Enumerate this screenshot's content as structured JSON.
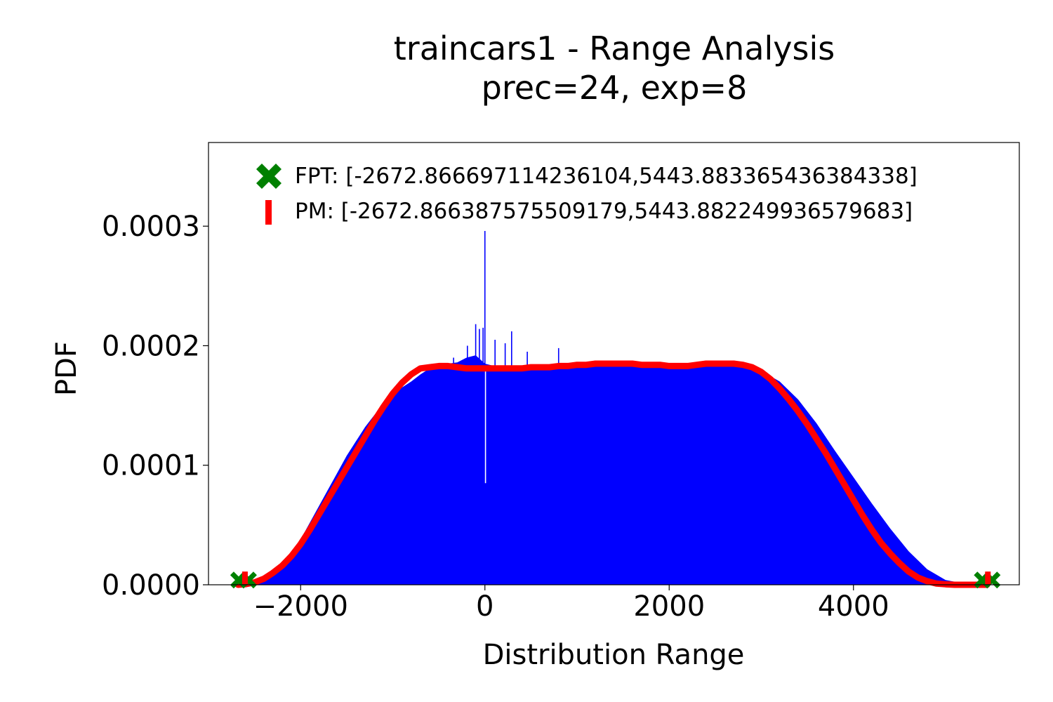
{
  "chart_data": {
    "type": "bar",
    "title": "traincars1 - Range Analysis",
    "subtitle": "prec=24, exp=8",
    "xlabel": "Distribution Range",
    "ylabel": "PDF",
    "xlim": [
      -3000,
      5800
    ],
    "ylim": [
      0,
      0.00037
    ],
    "xticks": [
      -2000,
      0,
      2000,
      4000
    ],
    "xtick_labels": [
      "−2000",
      "0",
      "2000",
      "4000"
    ],
    "yticks": [
      0,
      0.0001,
      0.0002,
      0.0003
    ],
    "ytick_labels": [
      "0.0000",
      "0.0001",
      "0.0002",
      "0.0003"
    ],
    "grid": false,
    "legend_position": "top-right",
    "histogram_color": "#0000ff",
    "histogram": {
      "x": [
        -2650,
        -2500,
        -2400,
        -2300,
        -2200,
        -2100,
        -2000,
        -1900,
        -1800,
        -1700,
        -1600,
        -1500,
        -1400,
        -1300,
        -1200,
        -1100,
        -1000,
        -900,
        -800,
        -700,
        -600,
        -500,
        -400,
        -300,
        -200,
        -100,
        0,
        100,
        200,
        300,
        400,
        500,
        600,
        700,
        800,
        900,
        1000,
        1200,
        1400,
        1600,
        1800,
        2000,
        2200,
        2400,
        2600,
        2800,
        3000,
        3200,
        3400,
        3600,
        3800,
        4000,
        4200,
        4400,
        4600,
        4800,
        5000,
        5200,
        5350,
        5444
      ],
      "values": [
        0,
        1e-06,
        4e-06,
        9e-06,
        1.6e-05,
        2.6e-05,
        3.8e-05,
        5.2e-05,
        6.6e-05,
        8e-05,
        9.4e-05,
        0.000108,
        0.00012,
        0.000132,
        0.000142,
        0.00015,
        0.000158,
        0.000165,
        0.00017,
        0.000176,
        0.000181,
        0.000184,
        0.000185,
        0.000186,
        0.00019,
        0.000192,
        0.000185,
        0.000183,
        0.000182,
        0.000182,
        0.000182,
        0.000182,
        0.000182,
        0.000183,
        0.000184,
        0.000184,
        0.000184,
        0.000186,
        0.000187,
        0.000186,
        0.000185,
        0.000184,
        0.000183,
        0.000185,
        0.000185,
        0.000182,
        0.000179,
        0.00017,
        0.000155,
        0.000135,
        0.000112,
        9e-05,
        6.8e-05,
        4.7e-05,
        2.8e-05,
        1.3e-05,
        4e-06,
        1e-06,
        0,
        0
      ]
    },
    "spikes": [
      {
        "x": -340,
        "value": 0.00019
      },
      {
        "x": -190,
        "value": 0.0002
      },
      {
        "x": -100,
        "value": 0.000218
      },
      {
        "x": -60,
        "value": 0.000214
      },
      {
        "x": -20,
        "value": 0.000215
      },
      {
        "x": 0,
        "value": 0.000296
      },
      {
        "x": 110,
        "value": 0.000205
      },
      {
        "x": 220,
        "value": 0.000202
      },
      {
        "x": 290,
        "value": 0.000212
      },
      {
        "x": 460,
        "value": 0.000195
      },
      {
        "x": 800,
        "value": 0.000198
      }
    ],
    "dip": {
      "x": -5,
      "value": 8.5e-05
    },
    "series": [
      {
        "name": "FPT: [-2672.866697114236104,5443.883365436384338]",
        "kind": "marker",
        "marker": "X",
        "color": "#008000",
        "x": [
          -2672.866697114236,
          5443.883365436384
        ],
        "y": [
          4e-06,
          4e-06
        ]
      },
      {
        "name": "PM: [-2672.866387575509179,5443.882249936579683]",
        "kind": "marker",
        "marker": "vertical-bar",
        "color": "#ff0000",
        "x": [
          -2672.866387575509,
          5443.88224993658
        ],
        "y": [
          4e-06,
          4e-06
        ]
      },
      {
        "kind": "density-curve",
        "color": "#ff0000",
        "x": [
          -2680,
          -2600,
          -2500,
          -2400,
          -2300,
          -2200,
          -2100,
          -2000,
          -1900,
          -1800,
          -1700,
          -1600,
          -1500,
          -1400,
          -1300,
          -1200,
          -1100,
          -1000,
          -900,
          -800,
          -700,
          -600,
          -500,
          -400,
          -300,
          -200,
          -100,
          0,
          100,
          200,
          300,
          400,
          500,
          600,
          700,
          800,
          900,
          1000,
          1100,
          1200,
          1300,
          1400,
          1500,
          1600,
          1700,
          1800,
          1900,
          2000,
          2100,
          2200,
          2300,
          2400,
          2500,
          2600,
          2700,
          2800,
          2900,
          3000,
          3100,
          3200,
          3300,
          3400,
          3500,
          3600,
          3700,
          3800,
          3900,
          4000,
          4100,
          4200,
          4300,
          4400,
          4500,
          4600,
          4700,
          4800,
          4900,
          5000,
          5100,
          5200,
          5300,
          5400,
          5450
        ],
        "y": [
          0,
          5e-07,
          2e-06,
          5e-06,
          1e-05,
          1.6e-05,
          2.4e-05,
          3.4e-05,
          4.6e-05,
          5.9e-05,
          7.2e-05,
          8.5e-05,
          9.8e-05,
          0.000111,
          0.000124,
          0.000137,
          0.000149,
          0.00016,
          0.000169,
          0.000176,
          0.000181,
          0.000182,
          0.000183,
          0.000183,
          0.000182,
          0.000181,
          0.000181,
          0.000181,
          0.000181,
          0.000181,
          0.000181,
          0.000181,
          0.000182,
          0.000182,
          0.000182,
          0.000183,
          0.000183,
          0.000184,
          0.000184,
          0.000185,
          0.000185,
          0.000185,
          0.000185,
          0.000185,
          0.000184,
          0.000184,
          0.000184,
          0.000183,
          0.000183,
          0.000183,
          0.000184,
          0.000185,
          0.000185,
          0.000185,
          0.000185,
          0.000184,
          0.000182,
          0.000178,
          0.000172,
          0.000164,
          0.000155,
          0.000145,
          0.000134,
          0.000122,
          0.00011,
          9.7e-05,
          8.4e-05,
          7.1e-05,
          5.8e-05,
          4.6e-05,
          3.5e-05,
          2.6e-05,
          1.8e-05,
          1.1e-05,
          6e-06,
          3e-06,
          1e-06,
          4e-07,
          0,
          0,
          0,
          0,
          0
        ]
      }
    ]
  }
}
